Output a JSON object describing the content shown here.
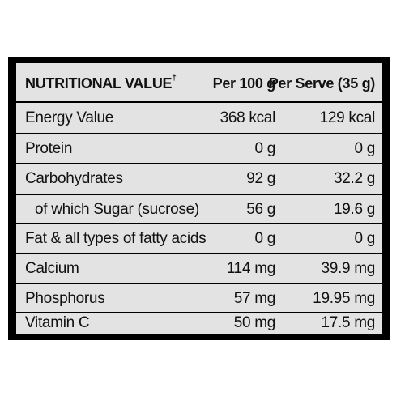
{
  "table": {
    "header": {
      "name": "NUTRITIONAL VALUE",
      "dagger": "†",
      "per100": "Per 100 g",
      "perServe": "Per Serve (35 g)"
    },
    "rows": [
      {
        "name": "Energy Value",
        "per100": "368 kcal",
        "perServe": "129 kcal"
      },
      {
        "name": "Protein",
        "per100": "0 g",
        "perServe": "0 g"
      },
      {
        "name": "Carbohydrates",
        "per100": "92 g",
        "perServe": "32.2 g"
      },
      {
        "name": "of which Sugar (sucrose)",
        "per100": "56 g",
        "perServe": "19.6 g"
      },
      {
        "name": "Fat & all types of fatty acids",
        "per100": "0 g",
        "perServe": "0 g"
      },
      {
        "name": "Calcium",
        "per100": "114 mg",
        "perServe": "39.9 mg"
      },
      {
        "name": "Phosphorus",
        "per100": "57 mg",
        "perServe": "19.95 mg"
      },
      {
        "name": "Vitamin C",
        "per100": "50 mg",
        "perServe": "17.5 mg"
      }
    ]
  },
  "colors": {
    "background": "#e3e3e3",
    "border": "#000000",
    "text": "#111111"
  }
}
